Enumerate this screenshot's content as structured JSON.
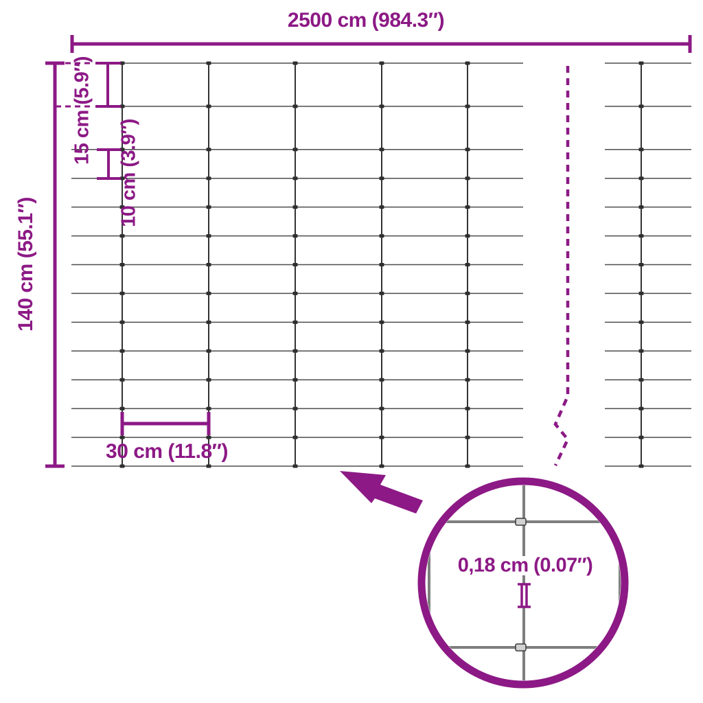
{
  "diagram": {
    "type": "product-dimension-diagram",
    "subject": "wire mesh fence",
    "labels": {
      "total_width": "2500 cm (984.3″)",
      "total_height": "140 cm (55.1″)",
      "row_spacing_top": "15 cm (5.9″)",
      "row_spacing_lower": "10 cm (3.9″)",
      "column_spacing": "30 cm (11.8″)",
      "wire_thickness": "0,18 cm (0.07″)"
    }
  },
  "mesh": {
    "width_cm": 2500,
    "height_cm": 140,
    "row_gaps_cm": [
      15,
      15,
      10,
      10,
      10,
      10,
      10,
      10,
      10,
      10,
      10,
      10,
      10
    ],
    "column_gap_cm": 30,
    "wire_thickness_cm": 0.18
  },
  "colors": {
    "accent": "#8C1985",
    "wire_horizontal": "#4d4d4d",
    "wire_vertical": "#323232",
    "knot": "#2f2f2f",
    "lens_wire": "#7e7e7e",
    "clamp_fill": "#d2d2d2",
    "clamp_border": "#3a3a3a"
  }
}
